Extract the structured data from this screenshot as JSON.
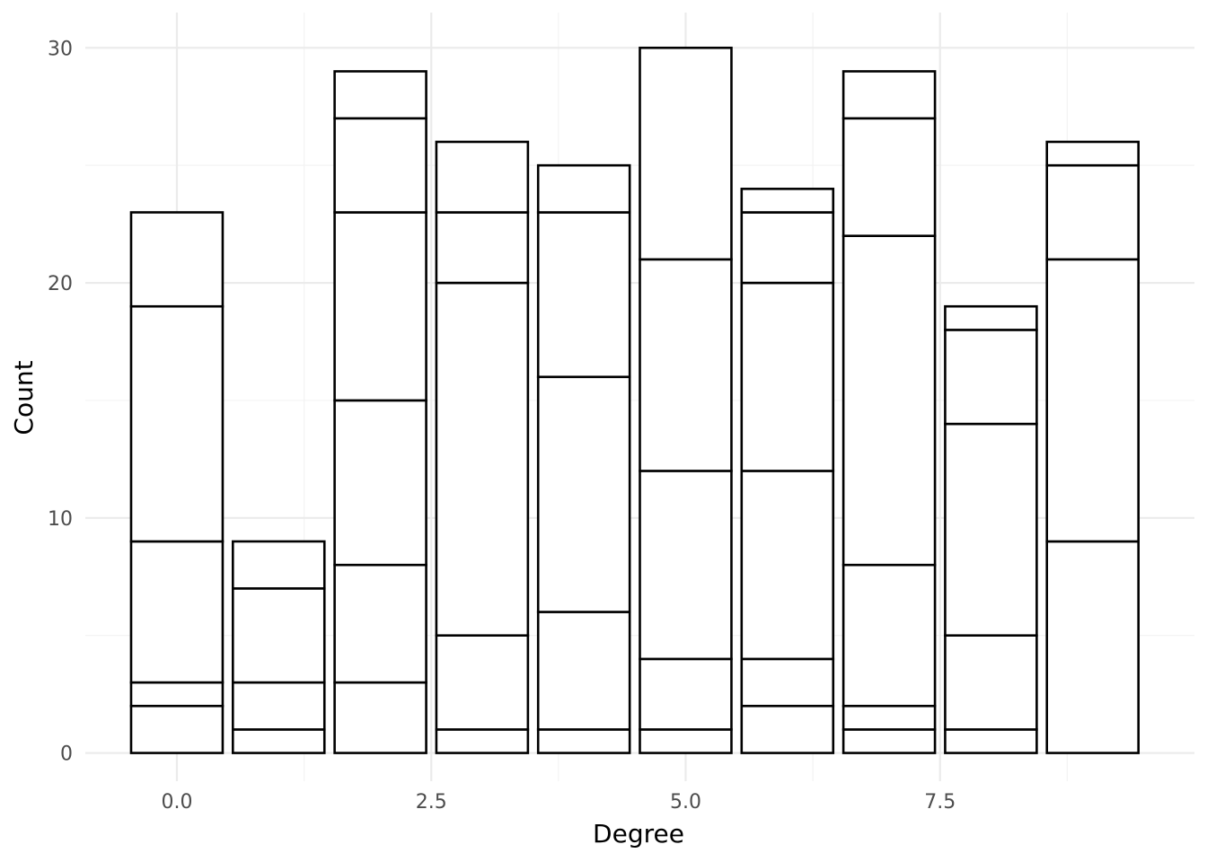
{
  "chart_data": {
    "type": "bar",
    "stacked": true,
    "title": "",
    "xlabel": "Degree",
    "ylabel": "Count",
    "xlim": [
      -0.9,
      10.0
    ],
    "ylim": [
      -1.2,
      31.5
    ],
    "x_ticks": [
      0.0,
      2.5,
      5.0,
      7.5
    ],
    "x_tick_labels": [
      "0.0",
      "2.5",
      "5.0",
      "7.5"
    ],
    "y_ticks": [
      0,
      10,
      20,
      30
    ],
    "y_tick_labels": [
      "0",
      "10",
      "20",
      "30"
    ],
    "grid": true,
    "bar_width": 0.9,
    "fill_color": "#ffffff",
    "outline_color": "#000000",
    "bars": [
      {
        "x": 0,
        "total": 23,
        "segments": [
          2,
          1,
          6,
          10,
          4
        ]
      },
      {
        "x": 1,
        "total": 9,
        "segments": [
          1,
          2,
          4,
          2
        ]
      },
      {
        "x": 2,
        "total": 29,
        "segments": [
          3,
          5,
          7,
          8,
          4,
          2
        ]
      },
      {
        "x": 3,
        "total": 26,
        "segments": [
          1,
          4,
          15,
          3,
          3
        ]
      },
      {
        "x": 4,
        "total": 25,
        "segments": [
          1,
          5,
          10,
          7,
          2
        ]
      },
      {
        "x": 5,
        "total": 30,
        "segments": [
          1,
          3,
          8,
          9,
          9
        ]
      },
      {
        "x": 6,
        "total": 24,
        "segments": [
          2,
          2,
          8,
          8,
          3,
          1
        ]
      },
      {
        "x": 7,
        "total": 29,
        "segments": [
          1,
          1,
          6,
          14,
          5,
          2
        ]
      },
      {
        "x": 8,
        "total": 19,
        "segments": [
          1,
          4,
          9,
          4,
          1
        ]
      },
      {
        "x": 9,
        "total": 26,
        "segments": [
          9,
          12,
          4,
          1
        ]
      }
    ]
  }
}
